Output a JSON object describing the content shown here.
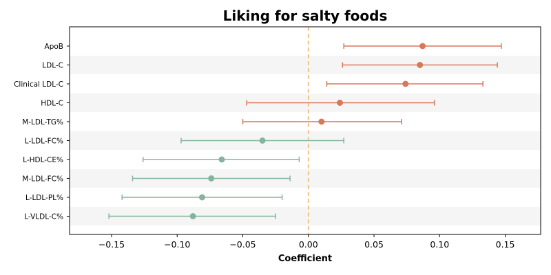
{
  "chart_data": {
    "type": "forest",
    "title": "Liking for salty foods",
    "xlabel": "Coefficient",
    "xlim": [
      -0.182,
      0.177
    ],
    "x_ticks": [
      -0.15,
      -0.1,
      -0.05,
      0.0,
      0.05,
      0.1,
      0.15
    ],
    "x_tick_labels": [
      "−0.15",
      "−0.10",
      "−0.05",
      "0.00",
      "0.05",
      "0.10",
      "0.15"
    ],
    "reference_line": 0.0,
    "colors": {
      "positive": "#d9775b",
      "negative": "#83b59c",
      "reference_line": "#f2c27e",
      "band": "#f5f5f5"
    },
    "rows": [
      {
        "label": "ApoB",
        "estimate": 0.087,
        "ci_low": 0.027,
        "ci_high": 0.147
      },
      {
        "label": "LDL-C",
        "estimate": 0.085,
        "ci_low": 0.026,
        "ci_high": 0.144
      },
      {
        "label": "Clinical LDL-C",
        "estimate": 0.074,
        "ci_low": 0.014,
        "ci_high": 0.133
      },
      {
        "label": "HDL-C",
        "estimate": 0.024,
        "ci_low": -0.047,
        "ci_high": 0.096
      },
      {
        "label": "M-LDL-TG%",
        "estimate": 0.01,
        "ci_low": -0.05,
        "ci_high": 0.071
      },
      {
        "label": "L-LDL-FC%",
        "estimate": -0.035,
        "ci_low": -0.097,
        "ci_high": 0.027
      },
      {
        "label": "L-HDL-CE%",
        "estimate": -0.066,
        "ci_low": -0.126,
        "ci_high": -0.007
      },
      {
        "label": "M-LDL-FC%",
        "estimate": -0.074,
        "ci_low": -0.134,
        "ci_high": -0.014
      },
      {
        "label": "L-LDL-PL%",
        "estimate": -0.081,
        "ci_low": -0.142,
        "ci_high": -0.02
      },
      {
        "label": "L-VLDL-C%",
        "estimate": -0.088,
        "ci_low": -0.152,
        "ci_high": -0.025
      }
    ]
  }
}
